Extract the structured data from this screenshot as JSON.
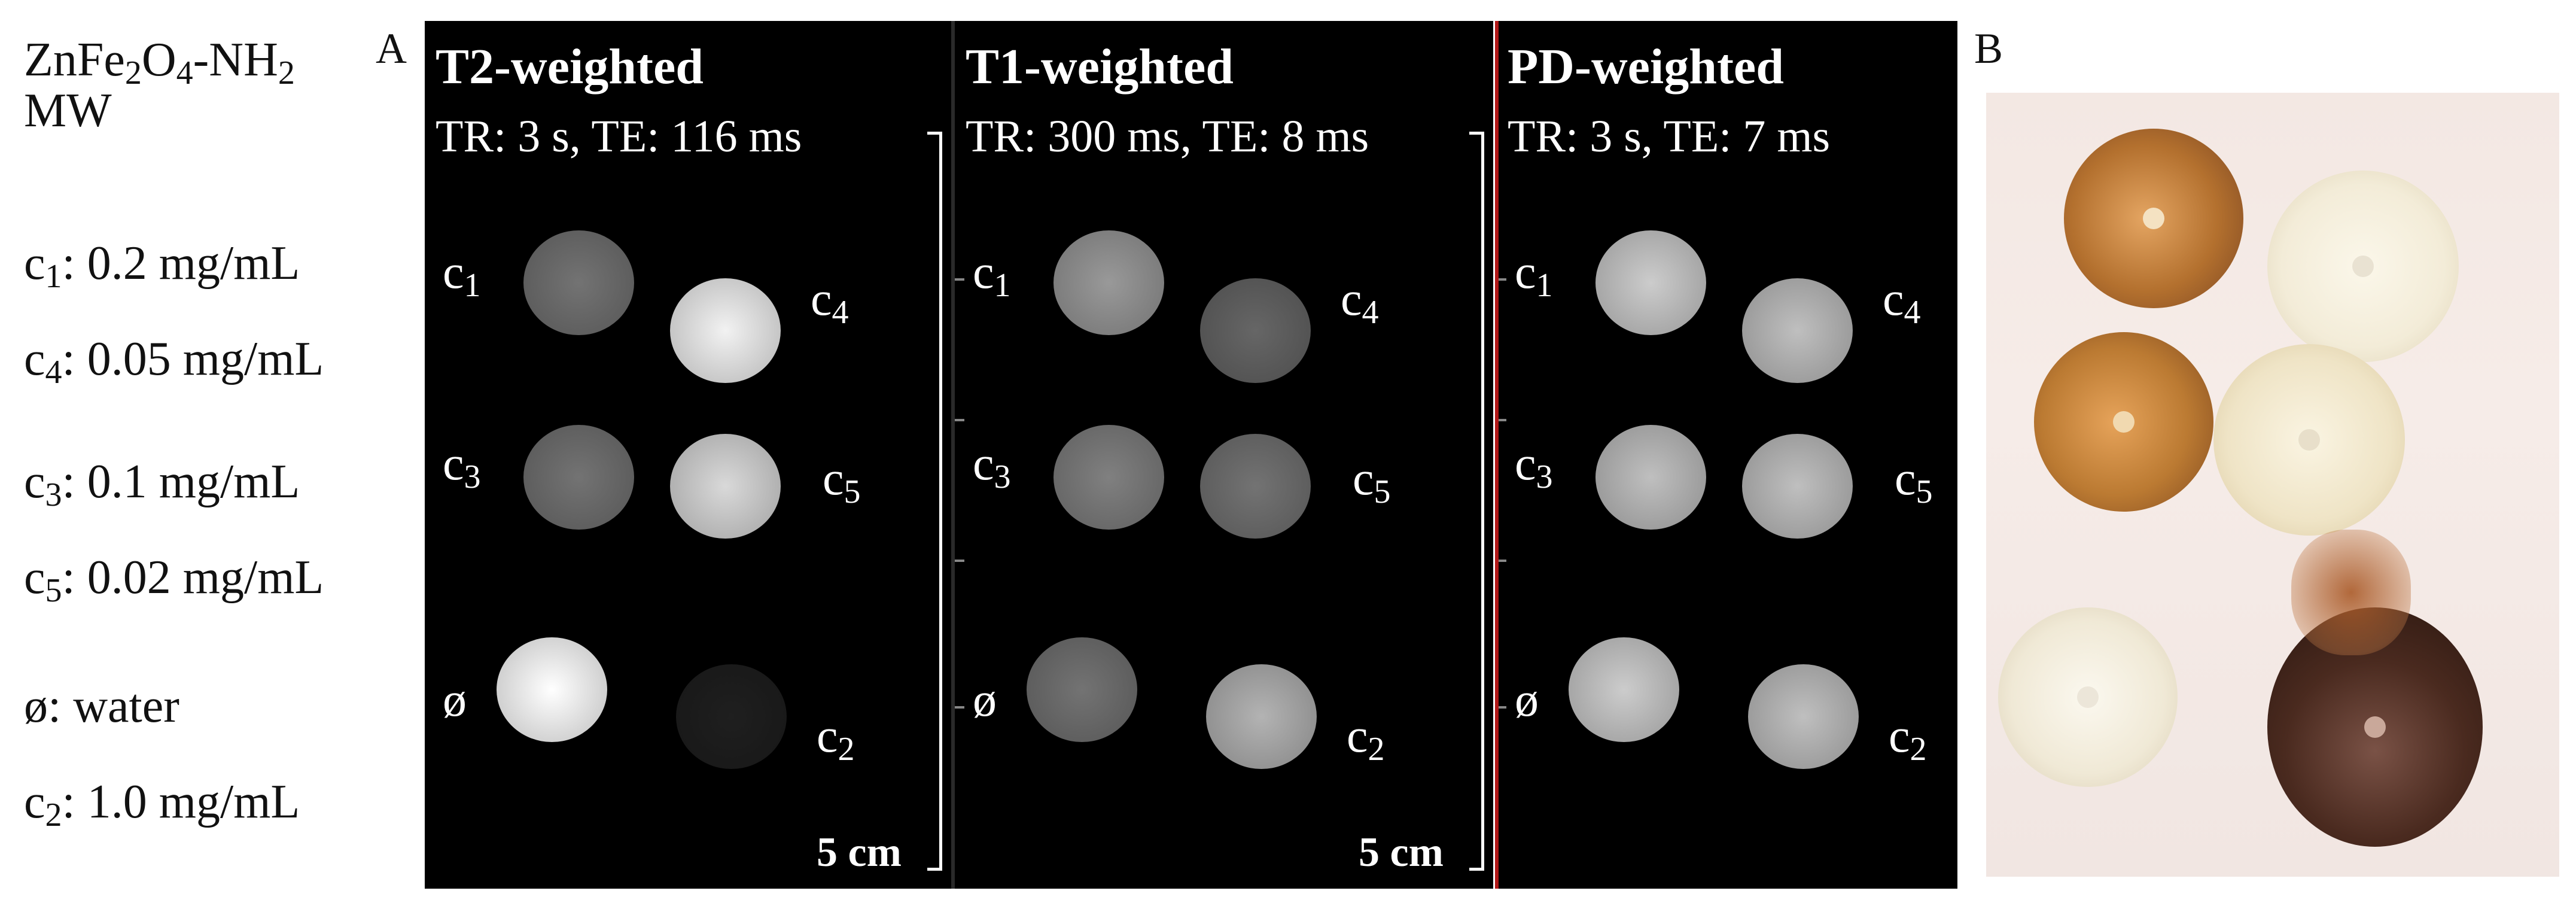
{
  "legend": {
    "material_prefix": "ZnFe",
    "material_sub1": "2",
    "material_mid": "O",
    "material_sub2": "4",
    "material_suffix": "-NH",
    "material_sub3": "2",
    "synthesis": "MW",
    "items": [
      {
        "sym": "c",
        "sub": "1",
        "text": ": 0.2 mg/mL"
      },
      {
        "sym": "c",
        "sub": "4",
        "text": ": 0.05 mg/mL"
      },
      {
        "sym": "c",
        "sub": "3",
        "text": ": 0.1 mg/mL"
      },
      {
        "sym": "c",
        "sub": "5",
        "text": ": 0.02 mg/mL"
      },
      {
        "sym": "ø",
        "sub": "",
        "text": ": water"
      },
      {
        "sym": "c",
        "sub": "2",
        "text": ": 1.0 mg/mL"
      }
    ]
  },
  "panel_a_label": "A",
  "panel_b_label": "B",
  "mri_panels": [
    {
      "title": "T2-weighted",
      "params": "TR: 3 s, TE: 116 ms",
      "scale": "5 cm",
      "levels": {
        "c1": 0.45,
        "c4": 0.95,
        "c3": 0.45,
        "c5": 0.85,
        "water": 1.0,
        "c2": 0.12
      }
    },
    {
      "title": "T1-weighted",
      "params": "TR: 300 ms, TE: 8 ms",
      "scale": "5 cm",
      "levels": {
        "c1": 0.6,
        "c4": 0.4,
        "c3": 0.5,
        "c5": 0.45,
        "water": 0.45,
        "c2": 0.7
      }
    },
    {
      "title": "PD-weighted",
      "params": "TR: 3 s, TE: 7 ms",
      "scale": "",
      "levels": {
        "c1": 0.8,
        "c4": 0.75,
        "c3": 0.75,
        "c5": 0.75,
        "water": 0.8,
        "c2": 0.75
      }
    }
  ],
  "sample_labels": {
    "c1": {
      "sym": "c",
      "sub": "1"
    },
    "c4": {
      "sym": "c",
      "sub": "4"
    },
    "c3": {
      "sym": "c",
      "sub": "3"
    },
    "c5": {
      "sym": "c",
      "sub": "5"
    },
    "water": {
      "sym": "ø",
      "sub": ""
    },
    "c2": {
      "sym": "c",
      "sub": "2"
    }
  },
  "colors": {
    "mri_bg": "#000000",
    "divider_red": "#b01818",
    "amber_vial": "#c98a3c",
    "clear_vial": "#f1ead7",
    "dark_vial": "#4a2a1f"
  }
}
